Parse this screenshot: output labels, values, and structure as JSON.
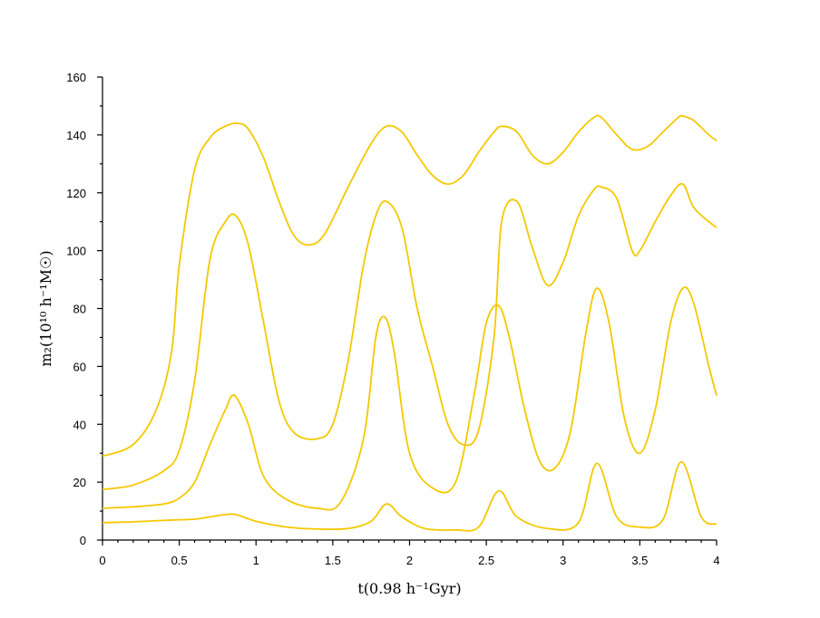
{
  "chart_data": {
    "type": "line",
    "xlabel": "t(0.98 h⁻¹Gyr)",
    "ylabel": "m₂(10¹⁰ h⁻¹M☉)",
    "xlim": [
      0,
      4
    ],
    "ylim": [
      0,
      160
    ],
    "xticks": [
      "0",
      "0.5",
      "1",
      "1.5",
      "2",
      "2.5",
      "3",
      "3.5",
      "4"
    ],
    "yticks": [
      "0",
      "20",
      "40",
      "60",
      "80",
      "100",
      "120",
      "140",
      "160"
    ],
    "grid": false,
    "line_color": "#f5c800",
    "series": [
      {
        "x": [
          0,
          0.2,
          0.4,
          0.5,
          0.6,
          0.7,
          0.8,
          0.87,
          1.0,
          1.2,
          1.4,
          1.6,
          1.75,
          1.85,
          1.95,
          2.1,
          2.3,
          2.45,
          2.58,
          2.7,
          2.9,
          3.1,
          3.22,
          3.35,
          3.5,
          3.65,
          3.77,
          3.9,
          4.0
        ],
        "values": [
          6,
          6.3,
          6.8,
          7,
          7.2,
          8,
          8.8,
          8.8,
          6.5,
          4.5,
          3.8,
          4,
          6.5,
          12.5,
          8,
          4,
          3.5,
          4.5,
          17,
          8,
          4,
          6,
          26.5,
          8,
          4.5,
          7,
          27,
          8,
          5.5
        ]
      },
      {
        "x": [
          0,
          0.2,
          0.4,
          0.5,
          0.6,
          0.7,
          0.8,
          0.86,
          0.95,
          1.05,
          1.2,
          1.4,
          1.55,
          1.7,
          1.78,
          1.84,
          1.9,
          2.0,
          2.15,
          2.3,
          2.42,
          2.5,
          2.58,
          2.65,
          2.75,
          2.85,
          2.95,
          3.05,
          3.15,
          3.22,
          3.3,
          3.4,
          3.5,
          3.6,
          3.7,
          3.78,
          3.85,
          3.95,
          4.0
        ],
        "values": [
          11,
          11.5,
          12.5,
          14.5,
          20,
          33,
          45,
          50,
          40,
          22,
          14,
          11,
          13,
          35,
          70,
          77,
          65,
          30,
          18,
          20,
          50,
          75,
          81,
          70,
          45,
          27,
          25,
          38,
          72,
          87,
          75,
          42,
          30,
          45,
          75,
          87,
          82,
          60,
          50
        ]
      },
      {
        "x": [
          0,
          0.2,
          0.4,
          0.5,
          0.6,
          0.7,
          0.8,
          0.87,
          0.95,
          1.05,
          1.15,
          1.25,
          1.4,
          1.5,
          1.6,
          1.7,
          1.78,
          1.85,
          1.95,
          2.05,
          2.15,
          2.25,
          2.35,
          2.45,
          2.55,
          2.6,
          2.7,
          2.8,
          2.9,
          3.0,
          3.1,
          3.2,
          3.25,
          3.35,
          3.45,
          3.5,
          3.6,
          3.7,
          3.78,
          3.85,
          3.95,
          4.0
        ],
        "values": [
          17.5,
          19,
          24,
          31,
          55,
          97,
          110,
          112,
          102,
          75,
          48,
          37,
          35,
          40,
          62,
          95,
          112,
          117,
          108,
          80,
          60,
          40,
          33,
          38,
          70,
          110,
          117,
          101,
          88,
          96,
          112,
          121,
          122,
          118,
          100,
          100,
          110,
          119,
          123,
          115,
          110,
          108
        ]
      },
      {
        "x": [
          0,
          0.2,
          0.35,
          0.45,
          0.5,
          0.6,
          0.7,
          0.8,
          0.88,
          0.95,
          1.05,
          1.15,
          1.25,
          1.35,
          1.45,
          1.6,
          1.75,
          1.85,
          1.95,
          2.05,
          2.15,
          2.25,
          2.35,
          2.45,
          2.55,
          2.6,
          2.7,
          2.8,
          2.9,
          3.0,
          3.1,
          3.2,
          3.25,
          3.35,
          3.45,
          3.55,
          3.65,
          3.75,
          3.78,
          3.85,
          3.95,
          4.0
        ],
        "values": [
          29,
          33,
          45,
          65,
          95,
          128,
          139,
          143,
          144,
          142,
          132,
          117,
          105,
          102,
          106,
          122,
          137,
          143,
          141,
          133,
          126,
          123,
          126,
          134,
          141,
          143,
          141,
          133,
          130,
          134,
          141,
          146,
          146,
          140,
          135,
          136,
          141,
          146,
          146.5,
          145,
          140,
          138
        ]
      }
    ]
  }
}
